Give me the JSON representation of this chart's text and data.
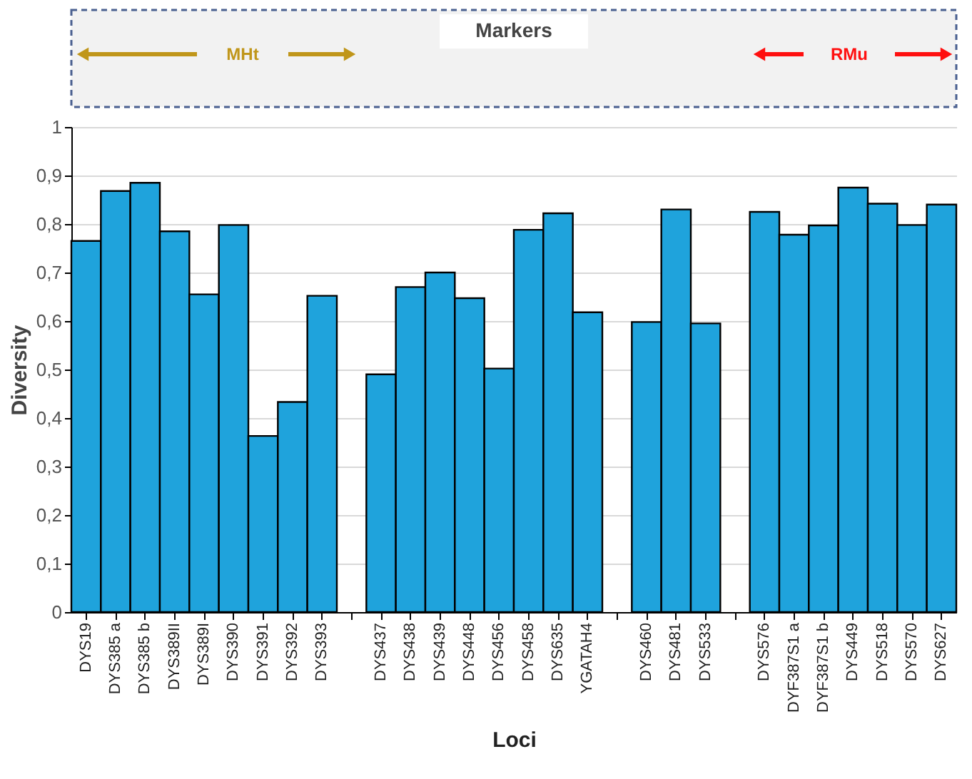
{
  "chart_data": {
    "type": "bar",
    "categories": [
      "DYS19",
      "DYS385 a",
      "DYS385 b",
      "DYS389II",
      "DYS389I",
      "DYS390",
      "DYS391",
      "DYS392",
      "DYS393",
      null,
      "DYS437",
      "DYS438",
      "DYS439",
      "DYS448",
      "DYS456",
      "DYS458",
      "DYS635",
      "YGATAH4",
      null,
      "DYS460",
      "DYS481",
      "DYS533",
      null,
      "DYS576",
      "DYF387S1 a",
      "DYF387S1 b",
      "DYS449",
      "DYS518",
      "DYS570",
      "DYS627"
    ],
    "values": [
      0.765,
      0.868,
      0.885,
      0.785,
      0.655,
      0.798,
      0.363,
      0.433,
      0.652,
      null,
      0.49,
      0.67,
      0.7,
      0.647,
      0.502,
      0.788,
      0.822,
      0.618,
      null,
      0.598,
      0.83,
      0.595,
      null,
      0.825,
      0.778,
      0.797,
      0.875,
      0.842,
      0.798,
      0.84
    ],
    "color": "#1fa3dc",
    "xlabel": "Loci",
    "ylabel": "Diversity",
    "ylim": [
      0,
      1
    ],
    "yticks": [
      0,
      {
        "value": 0.1,
        "label": "0,1"
      },
      {
        "value": 0.2,
        "label": "0,2"
      },
      {
        "value": 0.3,
        "label": "0,3"
      },
      {
        "value": 0.4,
        "label": "0,4"
      },
      {
        "value": 0.5,
        "label": "0,5"
      },
      {
        "value": 0.6,
        "label": "0,6"
      },
      {
        "value": 0.7,
        "label": "0,7"
      },
      {
        "value": 0.8,
        "label": "0,8"
      },
      {
        "value": 0.9,
        "label": "0,9"
      },
      1
    ],
    "grid": "y",
    "annotations": [
      "Markers",
      "MHt",
      "RMu"
    ]
  }
}
